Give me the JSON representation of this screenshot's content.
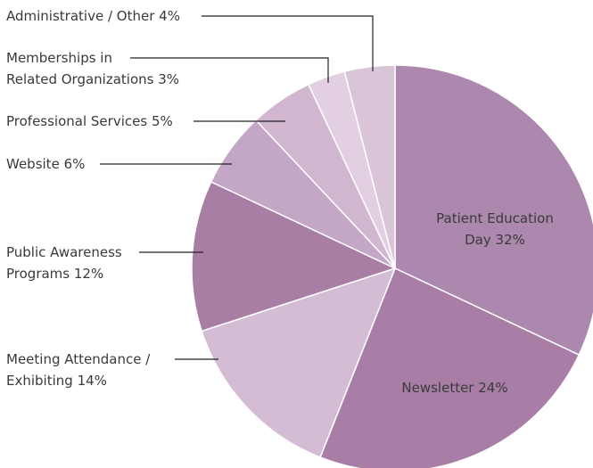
{
  "chart_data": {
    "type": "pie",
    "categories": [
      "Patient Education\nDay",
      "Newsletter",
      "Meeting Attendance /\nExhibiting",
      "Public Awareness\nPrograms",
      "Website",
      "Professional Services",
      "Memberships in\nRelated Organizations",
      "Administrative / Other"
    ],
    "values": [
      32,
      24,
      14,
      12,
      6,
      5,
      3,
      4
    ],
    "value_labels": [
      "32%",
      "24%",
      "14%",
      "12%",
      "6%",
      "5%",
      "3%",
      "4%"
    ],
    "colors": [
      "#ad88ae",
      "#a97ea6",
      "#d4bcd4",
      "#a87ea5",
      "#c4a6c6",
      "#d1b6d0",
      "#e2d0e2",
      "#d9c4d8"
    ]
  }
}
